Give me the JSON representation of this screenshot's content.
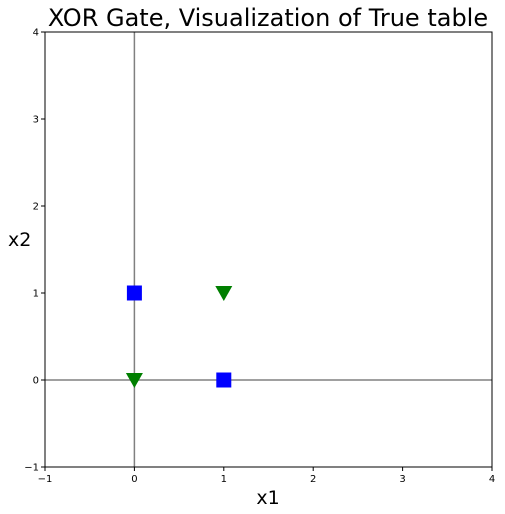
{
  "chart_data": {
    "type": "scatter",
    "title": "XOR Gate, Visualization of True table",
    "xlabel": "x1",
    "ylabel": "x2",
    "xlim": [
      -1,
      4
    ],
    "ylim": [
      -1,
      4
    ],
    "xticks": [
      "−1",
      "0",
      "1",
      "2",
      "3",
      "4"
    ],
    "yticks": [
      "−1",
      "0",
      "1",
      "2",
      "3",
      "4"
    ],
    "xtick_values": [
      -1,
      0,
      1,
      2,
      3,
      4
    ],
    "ytick_values": [
      -1,
      0,
      1,
      2,
      3,
      4
    ],
    "grid": false,
    "reference_lines": {
      "x": 0,
      "y": 0,
      "color": "#808080"
    },
    "series": [
      {
        "marker": "square",
        "color": "#0000ff",
        "x": [
          0,
          1
        ],
        "y": [
          1,
          0
        ]
      },
      {
        "marker": "triangle-down",
        "color": "#007f00",
        "x": [
          0,
          1
        ],
        "y": [
          0,
          1
        ]
      }
    ]
  }
}
